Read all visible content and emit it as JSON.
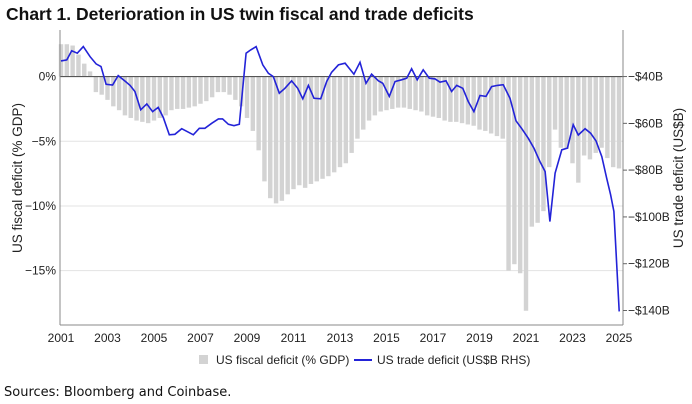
{
  "chart_data": {
    "type": "bar+line",
    "title": "Chart 1. Deterioration in US twin fiscal and trade deficits",
    "source": "Sources: Bloomberg and Coinbase.",
    "left_axis": {
      "label": "US fiscal deficit (% GDP)",
      "ticks": [
        0,
        -5,
        -10,
        -15
      ],
      "tick_labels": [
        "0%",
        "−5%",
        "−10%",
        "−15%"
      ],
      "ylim": [
        -19.2,
        3.6
      ]
    },
    "right_axis": {
      "label": "US trade deficit (US$B)",
      "ticks": [
        -40,
        -60,
        -80,
        -100,
        -120,
        -140
      ],
      "tick_labels": [
        "−$40B",
        "−$60B",
        "−$80B",
        "−$100B",
        "−$120B",
        "−$140B"
      ],
      "ylim": [
        -146.2,
        -20.1
      ]
    },
    "x_axis": {
      "tick_labels": [
        "2001",
        "2003",
        "2005",
        "2007",
        "2009",
        "2011",
        "2013",
        "2015",
        "2017",
        "2019",
        "2021",
        "2023",
        "2025"
      ],
      "ticks": [
        2001,
        2003,
        2005,
        2007,
        2009,
        2011,
        2013,
        2015,
        2017,
        2019,
        2021,
        2023,
        2025
      ],
      "xlim": [
        2001,
        2025.1
      ]
    },
    "grid": "horizontal",
    "legend_position": "bottom",
    "colors": {
      "bars": "#d3d3d3",
      "line": "#2323d8",
      "zero_line": "#555555",
      "grid": "#e3e3e3"
    },
    "series": [
      {
        "name": "US fiscal deficit (% GDP)",
        "kind": "bar",
        "axis": "left",
        "start": "2001Q1",
        "frequency": "quarterly",
        "values": [
          2.5,
          2.5,
          2.4,
          1.7,
          1.0,
          0.4,
          -1.2,
          -1.4,
          -1.8,
          -2.3,
          -2.6,
          -3.0,
          -3.2,
          -3.4,
          -3.5,
          -3.6,
          -3.4,
          -3.2,
          -3.0,
          -2.6,
          -2.5,
          -2.5,
          -2.4,
          -2.3,
          -2.1,
          -1.9,
          -1.6,
          -1.2,
          -1.2,
          -1.4,
          -1.8,
          -2.3,
          -3.2,
          -4.2,
          -5.7,
          -8.1,
          -9.4,
          -9.8,
          -9.6,
          -9.1,
          -8.7,
          -8.4,
          -8.6,
          -8.3,
          -8.1,
          -7.9,
          -7.7,
          -7.4,
          -7.0,
          -6.7,
          -5.9,
          -4.8,
          -4.1,
          -3.4,
          -3.0,
          -2.7,
          -2.6,
          -2.5,
          -2.4,
          -2.4,
          -2.5,
          -2.6,
          -2.7,
          -3.0,
          -3.1,
          -3.2,
          -3.4,
          -3.5,
          -3.5,
          -3.6,
          -3.7,
          -3.8,
          -4.1,
          -4.2,
          -4.4,
          -4.6,
          -4.8,
          -15.0,
          -14.5,
          -15.2,
          -18.1,
          -11.6,
          -11.3,
          -10.4,
          -7.0,
          -4.1,
          -5.5,
          -5.6,
          -6.7,
          -8.2,
          -6.1,
          -6.4,
          -5.9,
          -5.5,
          -6.3,
          -7.0,
          -7.1
        ]
      },
      {
        "name": "US trade deficit (US$B RHS)",
        "kind": "line",
        "axis": "right",
        "x": [
          2001.0,
          2001.25,
          2001.46,
          2001.7,
          2001.96,
          2002.25,
          2002.51,
          2002.72,
          2002.94,
          2003.22,
          2003.46,
          2003.75,
          2003.97,
          2004.18,
          2004.43,
          2004.69,
          2004.94,
          2005.18,
          2005.4,
          2005.66,
          2005.9,
          2006.19,
          2006.48,
          2006.69,
          2006.95,
          2007.19,
          2007.48,
          2007.77,
          2007.95,
          2008.2,
          2008.44,
          2008.67,
          2008.96,
          2009.16,
          2009.39,
          2009.68,
          2009.92,
          2010.13,
          2010.39,
          2010.63,
          2010.92,
          2011.18,
          2011.4,
          2011.64,
          2011.88,
          2012.17,
          2012.43,
          2012.64,
          2012.93,
          2013.22,
          2013.6,
          2013.86,
          2014.12,
          2014.36,
          2014.65,
          2014.84,
          2015.12,
          2015.37,
          2015.65,
          2015.87,
          2016.08,
          2016.32,
          2016.58,
          2016.84,
          2017.09,
          2017.3,
          2017.56,
          2017.8,
          2018.02,
          2018.28,
          2018.52,
          2018.76,
          2019.02,
          2019.28,
          2019.52,
          2019.77,
          2020.02,
          2020.31,
          2020.57,
          2020.82,
          2021.1,
          2021.34,
          2021.6,
          2021.82,
          2022.03,
          2022.25,
          2022.54,
          2022.78,
          2023.03,
          2023.25,
          2023.54,
          2023.78,
          2024.01,
          2024.26,
          2024.47,
          2024.64,
          2024.78,
          2025.01
        ],
        "values": [
          -33.3,
          -32.9,
          -29.0,
          -30.0,
          -27.2,
          -31.5,
          -34.6,
          -35.7,
          -43.3,
          -43.6,
          -39.6,
          -41.9,
          -43.8,
          -46.4,
          -54.2,
          -51.7,
          -55.0,
          -53.2,
          -57.5,
          -64.9,
          -64.7,
          -62.3,
          -63.8,
          -64.9,
          -62.1,
          -62.1,
          -60.0,
          -58.1,
          -58.1,
          -60.4,
          -61.0,
          -60.4,
          -30.0,
          -28.6,
          -27.2,
          -35.0,
          -38.6,
          -40.0,
          -47.1,
          -45.0,
          -41.8,
          -45.0,
          -49.5,
          -43.8,
          -49.3,
          -49.5,
          -42.1,
          -38.2,
          -35.0,
          -34.3,
          -39.0,
          -33.9,
          -42.9,
          -39.0,
          -41.8,
          -42.9,
          -48.5,
          -42.1,
          -41.4,
          -40.7,
          -36.7,
          -41.4,
          -37.1,
          -40.7,
          -41.0,
          -42.4,
          -41.8,
          -46.4,
          -43.8,
          -45.0,
          -50.7,
          -55.0,
          -48.1,
          -48.5,
          -44.3,
          -43.8,
          -43.5,
          -49.3,
          -58.9,
          -62.3,
          -66.4,
          -70.6,
          -76.3,
          -80.6,
          -102.0,
          -81.3,
          -71.3,
          -70.6,
          -60.6,
          -65.0,
          -62.3,
          -64.2,
          -67.5,
          -74.2,
          -83.5,
          -90.5,
          -97.7,
          -140.4
        ]
      }
    ]
  }
}
